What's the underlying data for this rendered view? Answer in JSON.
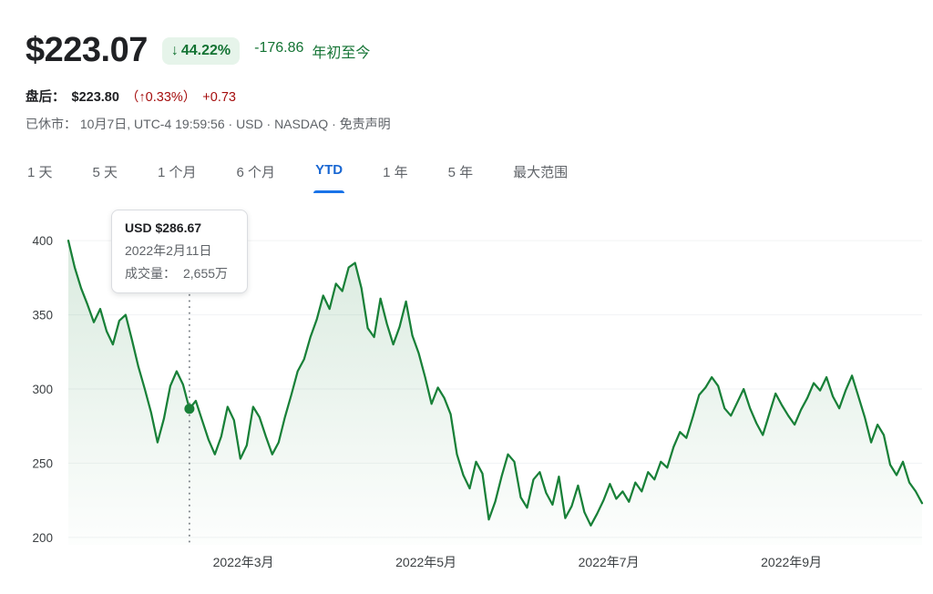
{
  "header": {
    "price": "$223.07",
    "badge_arrow": "↓",
    "badge_pct": "44.22%",
    "change_abs": "-176.86",
    "change_period": "年初至今",
    "after_hours_label": "盘后：",
    "after_hours_price": "$223.80",
    "after_hours_pct": "（↑0.33%）",
    "after_hours_abs": "+0.73",
    "market_status": "已休市： 10月7日, UTC-4 19:59:56 · USD · NASDAQ ·",
    "disclaimer_link": "免责声明"
  },
  "tabs": [
    {
      "id": "1d",
      "label": "1 天",
      "active": false
    },
    {
      "id": "5d",
      "label": "5 天",
      "active": false
    },
    {
      "id": "1m",
      "label": "1 个月",
      "active": false
    },
    {
      "id": "6m",
      "label": "6 个月",
      "active": false
    },
    {
      "id": "ytd",
      "label": "YTD",
      "active": true
    },
    {
      "id": "1y",
      "label": "1 年",
      "active": false
    },
    {
      "id": "5y",
      "label": "5 年",
      "active": false
    },
    {
      "id": "max",
      "label": "最大范围",
      "active": false
    }
  ],
  "tooltip": {
    "title": "USD $286.67",
    "date": "2022年2月11日",
    "volume_label": "成交量：",
    "volume_value": "2,655万"
  },
  "chart_data": {
    "type": "area",
    "title": "YTD price chart (USD)",
    "currency": "USD",
    "ylim": [
      195,
      405
    ],
    "yticks": [
      400,
      350,
      300,
      250,
      200
    ],
    "xticks": [
      {
        "label": "2022年3月",
        "pos": 0.205
      },
      {
        "label": "2022年5月",
        "pos": 0.419
      },
      {
        "label": "2022年7月",
        "pos": 0.633
      },
      {
        "label": "2022年9月",
        "pos": 0.847
      }
    ],
    "grid": true,
    "grid_color": "#f1f3f4",
    "line_color": "#188038",
    "fill_color": "#188038",
    "marker": {
      "index": 19,
      "price": 286.67,
      "label_price": "USD $286.67",
      "date": "2022年2月11日",
      "volume": "2,655万"
    },
    "prices": [
      400,
      382,
      368,
      357,
      345,
      354,
      339,
      330,
      346,
      350,
      333,
      315,
      300,
      284,
      264,
      280,
      302,
      312,
      303,
      286.67,
      292,
      279,
      266,
      256,
      268,
      288,
      279,
      253,
      262,
      288,
      281,
      268,
      256,
      264,
      281,
      296,
      312,
      320,
      335,
      347,
      363,
      354,
      371,
      366,
      382,
      385,
      368,
      341,
      335,
      361,
      344,
      330,
      342,
      359,
      336,
      324,
      308,
      290,
      301,
      294,
      283,
      256,
      242,
      233,
      251,
      243,
      212,
      224,
      241,
      256,
      251,
      227,
      220,
      239,
      244,
      230,
      222,
      241,
      213,
      221,
      235,
      217,
      208,
      216,
      225,
      236,
      226,
      231,
      224,
      237,
      231,
      244,
      239,
      251,
      247,
      261,
      271,
      267,
      281,
      296,
      301,
      308,
      302,
      287,
      282,
      291,
      300,
      287,
      277,
      269,
      283,
      297,
      289,
      282,
      276,
      286,
      294,
      304,
      299,
      308,
      295,
      287,
      299,
      309,
      295,
      281,
      264,
      276,
      269,
      249,
      242,
      251,
      237,
      231,
      223.07
    ]
  }
}
